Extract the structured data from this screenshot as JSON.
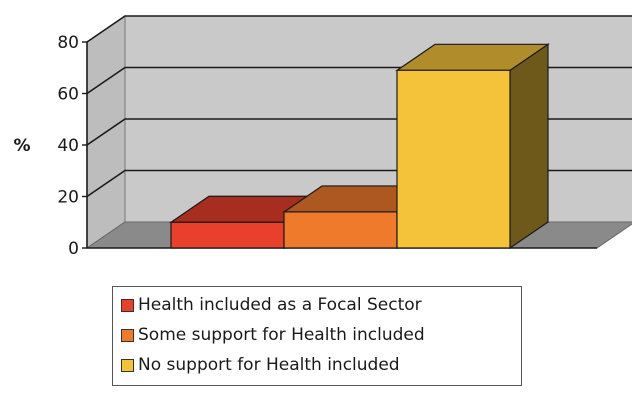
{
  "chart_data": {
    "type": "bar",
    "ylabel": "%",
    "ylim": [
      0,
      80
    ],
    "yticks": [
      0,
      20,
      40,
      60,
      80
    ],
    "grid": true,
    "legend_position": "bottom",
    "series": [
      {
        "name": "Health included as a Focal Sector",
        "values": [
          10
        ],
        "color": "#e8402a"
      },
      {
        "name": "Some support for Health included",
        "values": [
          14
        ],
        "color": "#ef7a2c"
      },
      {
        "name": "No support for Health included",
        "values": [
          69
        ],
        "color": "#f5c33a"
      }
    ]
  }
}
